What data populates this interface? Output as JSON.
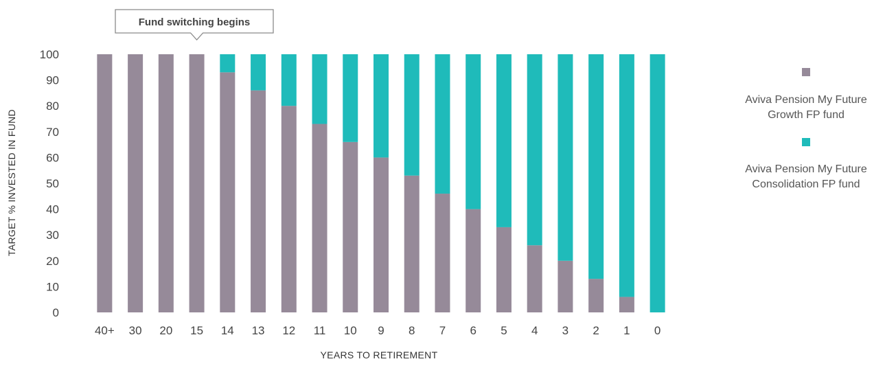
{
  "chart_data": {
    "type": "bar",
    "stacked": true,
    "categories": [
      "40+",
      "30",
      "20",
      "15",
      "14",
      "13",
      "12",
      "11",
      "10",
      "9",
      "8",
      "7",
      "6",
      "5",
      "4",
      "3",
      "2",
      "1",
      "0"
    ],
    "series": [
      {
        "name_lines": [
          "Aviva Pension My Future",
          "Growth FP fund"
        ],
        "color": "#968a99",
        "values": [
          100,
          100,
          100,
          100,
          93,
          86,
          80,
          73,
          66,
          60,
          53,
          46,
          40,
          33,
          26,
          20,
          13,
          6,
          0
        ]
      },
      {
        "name_lines": [
          "Aviva Pension My Future",
          "Consolidation FP fund"
        ],
        "color": "#1fbbba",
        "values": [
          0,
          0,
          0,
          0,
          7,
          14,
          20,
          27,
          34,
          40,
          47,
          54,
          60,
          67,
          74,
          80,
          87,
          94,
          100
        ]
      }
    ],
    "xlabel": "YEARS TO RETIREMENT",
    "ylabel": "TARGET % INVESTED IN FUND",
    "ylim": [
      0,
      100
    ],
    "yticks": [
      0,
      10,
      20,
      30,
      40,
      50,
      60,
      70,
      80,
      90,
      100
    ],
    "grid": false,
    "legend_position": "right",
    "annotation": {
      "text": "Fund switching begins",
      "category": "15"
    }
  }
}
